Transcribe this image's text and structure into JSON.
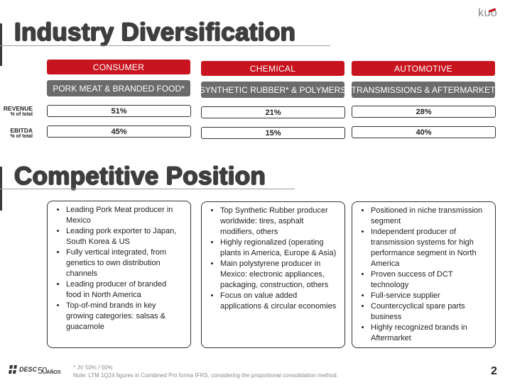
{
  "logo": {
    "text": "kuo"
  },
  "diversification": {
    "title": "Industry Diversification",
    "row_labels": {
      "revenue": "REVENUE",
      "revenue_sub": "% of total",
      "ebitda": "EBITDA",
      "ebitda_sub": "% of total"
    },
    "segments": [
      {
        "category": "CONSUMER",
        "business": "PORK MEAT & BRANDED FOOD*",
        "revenue": "51%",
        "ebitda": "45%"
      },
      {
        "category": "CHEMICAL",
        "business": "SYNTHETIC RUBBER* & POLYMERS",
        "revenue": "21%",
        "ebitda": "15%"
      },
      {
        "category": "AUTOMOTIVE",
        "business": "TRANSMISSIONS & AFTERMARKET",
        "revenue": "28%",
        "ebitda": "40%"
      }
    ]
  },
  "competitive": {
    "title": "Competitive Position",
    "columns": [
      {
        "items": [
          "Leading Pork Meat producer in Mexico",
          "Leading pork exporter to Japan, South Korea & US",
          "Fully vertical integrated, from genetics to own distribution channels",
          "Leading producer of branded food in North America",
          "Top-of-mind brands in key growing categories: salsas & guacamole"
        ]
      },
      {
        "items": [
          "Top Synthetic Rubber producer worldwide: tires, asphalt modifiers, others",
          "Highly regionalized (operating plants in America, Europe & Asia)",
          "Main polystyrene producer in Mexico: electronic appliances, packaging, construction, others",
          "Focus on value added applications & circular economies"
        ]
      },
      {
        "items": [
          "Positioned in niche transmission segment",
          "Independent producer of transmission systems for high performance segment in North America",
          "Proven success of DCT technology",
          "Full-service supplier",
          "Countercyclical spare parts business",
          "Highly recognized brands in Aftermarket"
        ]
      }
    ]
  },
  "footer": {
    "desc_logo": "DESC",
    "anniversary_number": "50",
    "anniversary_word": "AÑOS",
    "note1": "* JV 50% / 50%",
    "note2": "Note: LTM 1Q24 figures in Combined Pro forma IFRS, considering the proportional consolidation method.",
    "page_number": "2"
  },
  "colors": {
    "accent_red": "#c8141e",
    "segment_gray": "#6b6b6b",
    "heading": "#3e3e3e"
  }
}
